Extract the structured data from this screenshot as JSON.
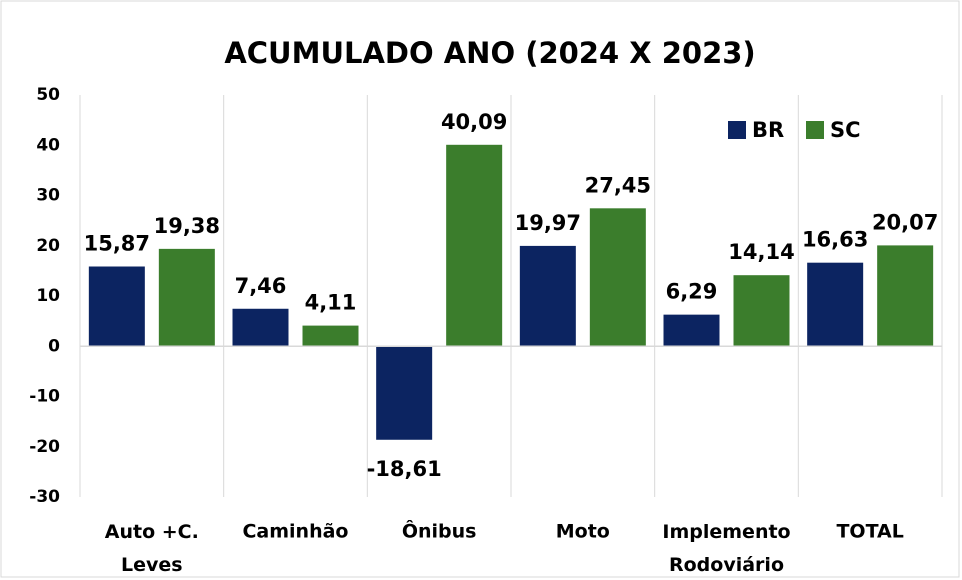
{
  "chart_data": {
    "type": "bar",
    "title": "ACUMULADO ANO (2024 X 2023)",
    "categories": [
      "Auto +C. Leves",
      "Caminhão",
      "Ônibus",
      "Moto",
      "Implemento Rodoviário",
      "TOTAL"
    ],
    "series": [
      {
        "name": "BR",
        "color": "#0c2461",
        "values": [
          15.87,
          7.46,
          -18.61,
          19.97,
          6.29,
          16.63
        ],
        "value_labels": [
          "15,87",
          "7,46",
          "-18,61",
          "19,97",
          "6,29",
          "16,63"
        ]
      },
      {
        "name": "SC",
        "color": "#3b7d2c",
        "values": [
          19.38,
          4.11,
          40.09,
          27.45,
          14.14,
          20.07
        ],
        "value_labels": [
          "19,38",
          "4,11",
          "40,09",
          "27,45",
          "14,14",
          "20,07"
        ]
      }
    ],
    "ylim": [
      -30,
      50
    ],
    "yticks": [
      -30,
      -20,
      -10,
      0,
      10,
      20,
      30,
      40,
      50
    ],
    "grid": false,
    "legend": "upper right"
  }
}
